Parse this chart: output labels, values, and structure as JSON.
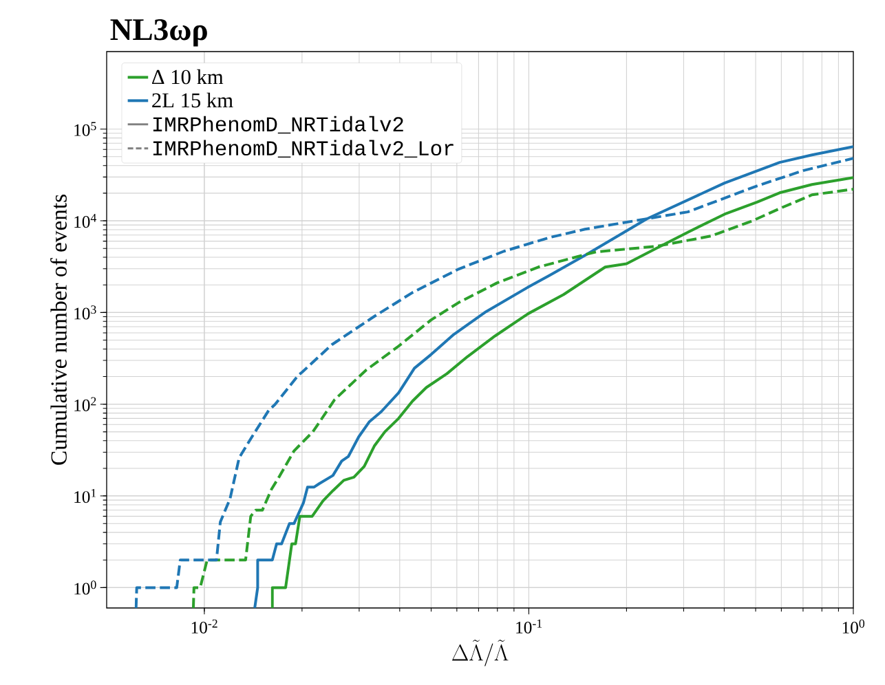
{
  "chart_data": {
    "type": "line",
    "title": "NL3ωρ",
    "xlabel": "\\Delta\\tilde{\\Lambda}/\\tilde{\\Lambda}",
    "ylabel": "Cumulative number of events",
    "log": "xy",
    "grid": true,
    "legend": "top left",
    "xlim": [
      0.005,
      1
    ],
    "ylim": [
      0.6,
      700000
    ],
    "xticks": [
      {
        "value": 0.01,
        "label": "10$^{-2}$"
      },
      {
        "value": 0.1,
        "label": "10$^{-1}$"
      },
      {
        "value": 1,
        "label": "10$^{0}$"
      }
    ],
    "yticks": [
      {
        "value": 1,
        "label": "10$^{0}$"
      },
      {
        "value": 10,
        "label": "10$^{1}$"
      },
      {
        "value": 100,
        "label": "10$^{2}$"
      },
      {
        "value": 1000,
        "label": "10$^{3}$"
      },
      {
        "value": 10000,
        "label": "10$^{4}$"
      },
      {
        "value": 100000,
        "label": "10$^{5}$"
      }
    ],
    "annotations": [
      "IMRPhenomD_NRTidalv2",
      "IMRPhenomD_NRTidalv2_Lor"
    ],
    "series": [
      {
        "name": "Δ 10 km",
        "color": "#2ca02c",
        "line_style": "solid",
        "x": [
          0.0162,
          0.0162,
          0.0178,
          0.0186,
          0.0191,
          0.0197,
          0.0215,
          0.0232,
          0.0249,
          0.0269,
          0.0289,
          0.0311,
          0.0334,
          0.036,
          0.0397,
          0.0438,
          0.0483,
          0.0559,
          0.0647,
          0.0787,
          0.0995,
          0.128,
          0.172,
          0.2,
          0.255,
          0.309,
          0.401,
          0.505,
          0.593,
          0.746,
          1
        ],
        "values": [
          0.6,
          1,
          1,
          3,
          3,
          6,
          6,
          8.8,
          11.4,
          14.8,
          16,
          21,
          35,
          50,
          70,
          108,
          152,
          215,
          330,
          555,
          970,
          1570,
          3130,
          3400,
          5300,
          7500,
          11800,
          16000,
          20200,
          24900,
          29600
        ]
      },
      {
        "name": "2L 15 km",
        "color": "#1f77b4",
        "line_style": "solid",
        "x": [
          0.0143,
          0.0146,
          0.0146,
          0.0162,
          0.0167,
          0.0173,
          0.0183,
          0.0189,
          0.0202,
          0.0208,
          0.0218,
          0.0226,
          0.0249,
          0.0265,
          0.0278,
          0.0299,
          0.0322,
          0.0351,
          0.0397,
          0.0444,
          0.05,
          0.0587,
          0.0738,
          0.099,
          0.116,
          0.149,
          0.231,
          0.401,
          0.593,
          0.746,
          1
        ],
        "values": [
          0.6,
          1,
          2,
          2,
          3,
          3,
          5,
          5,
          8.4,
          12.5,
          12.5,
          13.6,
          16.7,
          24,
          27,
          44,
          64,
          83,
          133,
          247,
          349,
          576,
          1020,
          1870,
          2550,
          4200,
          10500,
          25800,
          43300,
          52300,
          64400
        ]
      },
      {
        "color": "#2ca02c",
        "line_style": "dashed",
        "x": [
          0.00925,
          0.00929,
          0.00971,
          0.0102,
          0.0134,
          0.0139,
          0.0144,
          0.0151,
          0.0161,
          0.0171,
          0.0189,
          0.0216,
          0.0252,
          0.0315,
          0.0397,
          0.05,
          0.0607,
          0.0798,
          0.107,
          0.149,
          0.161,
          0.246,
          0.364,
          0.488,
          0.593,
          0.746,
          1
        ],
        "values": [
          0.6,
          1,
          1,
          2,
          2,
          6,
          7,
          7,
          11.8,
          16.7,
          31,
          50,
          112,
          235,
          430,
          830,
          1280,
          2100,
          3130,
          4270,
          4580,
          5260,
          6810,
          9960,
          13600,
          19200,
          22100
        ]
      },
      {
        "color": "#1f77b4",
        "line_style": "dashed",
        "x": [
          0.00616,
          0.00619,
          0.00822,
          0.00843,
          0.0109,
          0.0112,
          0.012,
          0.0128,
          0.0139,
          0.0158,
          0.0165,
          0.0195,
          0.02,
          0.0247,
          0.0331,
          0.0438,
          0.0607,
          0.0839,
          0.116,
          0.149,
          0.199,
          0.309,
          0.505,
          0.7,
          1
        ],
        "values": [
          0.6,
          1,
          1,
          2,
          2,
          5.2,
          9.3,
          26,
          42,
          86,
          99,
          208,
          223,
          445,
          888,
          1650,
          2970,
          4660,
          6580,
          8090,
          9620,
          12500,
          24000,
          35200,
          48000
        ]
      }
    ]
  }
}
